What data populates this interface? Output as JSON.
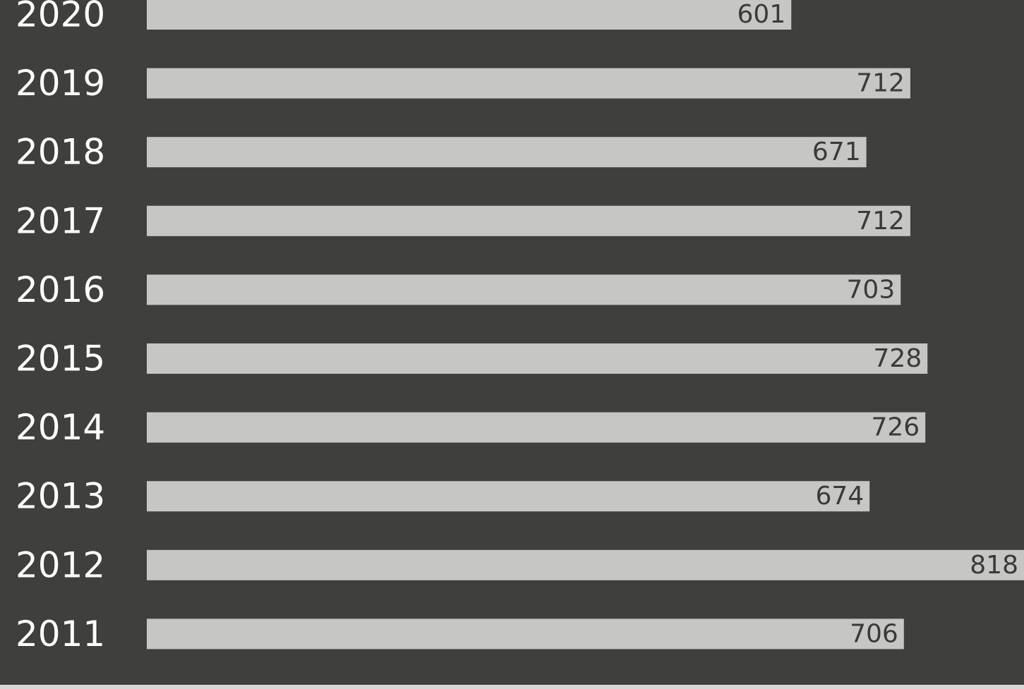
{
  "chart_data": {
    "type": "bar",
    "orientation": "horizontal",
    "categories": [
      "2020",
      "2019",
      "2018",
      "2017",
      "2016",
      "2015",
      "2014",
      "2013",
      "2012",
      "2011"
    ],
    "values": [
      601,
      712,
      671,
      712,
      703,
      728,
      726,
      674,
      818,
      706
    ],
    "title": "",
    "xlabel": "",
    "ylabel": "",
    "xlim": [
      0,
      818
    ],
    "grid": false,
    "legend": "none",
    "data_labels": true
  },
  "colors": {
    "background": "#3f3f3d",
    "bar": "#c6c6c4",
    "category_label": "#ffffff",
    "value_label": "#3a3a3a"
  }
}
